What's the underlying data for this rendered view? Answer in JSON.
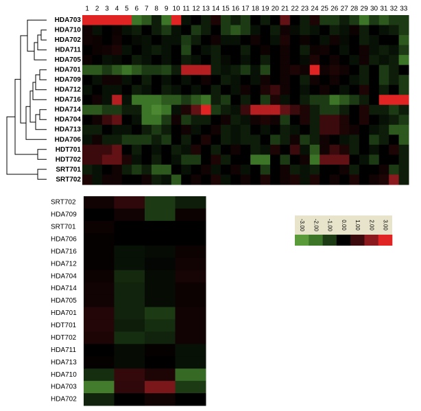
{
  "chart_data": [
    {
      "type": "heatmap",
      "columns": [
        "1",
        "2",
        "3",
        "4",
        "5",
        "6",
        "7",
        "8",
        "9",
        "10",
        "11",
        "12",
        "13",
        "14",
        "15",
        "16",
        "17",
        "18",
        "19",
        "20",
        "21",
        "22",
        "23",
        "24",
        "25",
        "26",
        "27",
        "28",
        "29",
        "30",
        "31",
        "32",
        "33"
      ],
      "rows": [
        "HDA703",
        "HDA710",
        "HDA702",
        "HDA711",
        "HDA705",
        "HDA701",
        "HDA709",
        "HDA712",
        "HDA716",
        "HDA714",
        "HDA704",
        "HDA713",
        "HDA706",
        "HDT701",
        "HDT702",
        "SRT701",
        "SRT702"
      ],
      "values": [
        [
          3,
          3,
          3,
          3,
          3,
          -2,
          -1.5,
          -0.5,
          -2,
          3,
          -0.3,
          0,
          -0.5,
          0.5,
          -1,
          -0.5,
          -1,
          0,
          -0.5,
          0,
          1.5,
          0,
          -0.5,
          0.5,
          -1,
          -1,
          -0.5,
          -1,
          -2,
          -1,
          -1.5,
          -1,
          -1
        ],
        [
          0.3,
          -0.3,
          0,
          0.2,
          -0.3,
          -0.5,
          0,
          -0.5,
          -1,
          -0.3,
          0,
          -1,
          -0.5,
          0,
          -1,
          -1.5,
          -1,
          -0.3,
          0,
          -0.5,
          0.3,
          -0.2,
          -0.5,
          -0.3,
          0,
          -0.5,
          -0.3,
          0.2,
          -0.5,
          0,
          -0.3,
          -0.5,
          -1
        ],
        [
          0.3,
          0.2,
          0,
          0.3,
          0,
          -0.2,
          -0.3,
          0,
          -0.3,
          -0.3,
          -1,
          -0.5,
          0,
          0.3,
          -0.3,
          -0.3,
          0,
          0.3,
          0,
          -0.3,
          0.5,
          0,
          0.2,
          0,
          -0.3,
          0.3,
          -0.2,
          0,
          -0.5,
          -0.3,
          0,
          0,
          -1.5
        ],
        [
          0,
          0.2,
          0.3,
          0.5,
          -0.3,
          0,
          -0.3,
          -0.5,
          -0.3,
          0,
          -1.2,
          0,
          -0.3,
          -0.5,
          0,
          0,
          -0.5,
          0,
          0.2,
          0,
          0.3,
          0,
          -0.5,
          0.2,
          0.3,
          0,
          -0.3,
          0,
          0.3,
          -0.3,
          -0.5,
          -0.3,
          -1
        ],
        [
          0.2,
          0,
          -0.3,
          -0.2,
          0,
          -0.5,
          -0.3,
          0,
          -0.3,
          0,
          -0.5,
          -0.3,
          0,
          -0.5,
          -0.2,
          0,
          -0.3,
          0,
          -0.5,
          0,
          0.3,
          0,
          -0.2,
          0.5,
          0,
          0.3,
          0,
          -0.3,
          0.3,
          -0.5,
          -0.3,
          -0.5,
          -2
        ],
        [
          -1.5,
          -1.5,
          -1,
          -1.5,
          -2,
          -1.5,
          -1,
          -1,
          -1.2,
          -0.5,
          2.5,
          2.5,
          2.5,
          -0.5,
          -0.3,
          -0.5,
          -1,
          -0.3,
          -1.2,
          0,
          0.3,
          0.5,
          0.3,
          3,
          0.3,
          0.5,
          0.3,
          0,
          -0.5,
          0,
          -1,
          -0.5,
          0
        ],
        [
          0,
          -0.3,
          0.3,
          0.3,
          -0.3,
          0,
          -0.5,
          0,
          -0.3,
          0,
          -0.3,
          0,
          0.3,
          0,
          -0.5,
          -0.3,
          0,
          -0.3,
          0.3,
          0,
          0.3,
          0,
          -0.5,
          0.3,
          0,
          0.3,
          0,
          -0.3,
          -0.5,
          0,
          -1,
          -0.5,
          -1
        ],
        [
          -0.3,
          0,
          -0.3,
          -0.3,
          0,
          -0.5,
          -0.3,
          0,
          -0.5,
          -0.3,
          0,
          -0.3,
          0,
          -0.5,
          0,
          -0.3,
          0.3,
          0,
          0.5,
          1,
          0.3,
          0,
          -0.3,
          0,
          0.3,
          0,
          -0.3,
          0,
          0.5,
          0,
          -0.5,
          0,
          -1
        ],
        [
          0,
          0.3,
          -0.3,
          2.5,
          -0.3,
          -2,
          -2,
          -2,
          -1.5,
          -1.5,
          -1,
          -1.5,
          -2,
          -0.5,
          -1,
          0,
          -0.5,
          0,
          -1,
          0.5,
          -0.3,
          0,
          -0.5,
          -1,
          -1,
          -2,
          -1.5,
          -1,
          -0.5,
          0,
          3,
          3,
          3
        ],
        [
          -1.5,
          -1.5,
          -1,
          -1,
          -0.5,
          -0.5,
          -2,
          -2.5,
          -2,
          -0.3,
          0.5,
          1.5,
          3,
          -1,
          -0.5,
          -0.3,
          1,
          2.5,
          2.5,
          2.5,
          1.5,
          1,
          0.5,
          -0.5,
          -1,
          -1,
          -0.5,
          0,
          0.5,
          -0.5,
          -0.5,
          -1,
          -0.5
        ],
        [
          0,
          0.3,
          1,
          1.5,
          0,
          -0.3,
          -2,
          -2,
          -1,
          0.3,
          -1,
          -0.5,
          -0.5,
          0,
          0.3,
          -0.5,
          -0.3,
          0.3,
          0.5,
          0.3,
          -1,
          0,
          0.5,
          -0.5,
          1,
          1,
          0.5,
          0,
          0.5,
          0,
          -0.3,
          -0.5,
          -1
        ],
        [
          -0.5,
          -0.5,
          0,
          -0.3,
          -0.3,
          0,
          -0.5,
          -1,
          -0.5,
          0,
          0.3,
          -0.3,
          0,
          0.3,
          -0.5,
          -0.3,
          -0.5,
          0,
          -0.3,
          0,
          -0.5,
          -0.3,
          0,
          -0.5,
          1,
          1,
          0.5,
          0.3,
          0,
          -0.3,
          -0.5,
          -1.5,
          -1.5
        ],
        [
          -0.3,
          0.3,
          -0.5,
          -0.5,
          -1,
          -1,
          -1,
          -0.5,
          -1,
          0,
          -0.5,
          0,
          0.5,
          0,
          -0.5,
          -0.3,
          -0.5,
          -0.5,
          0,
          -1,
          -0.5,
          0.3,
          -1,
          -0.5,
          0.3,
          0,
          -0.3,
          -0.5,
          0,
          -1,
          -0.5,
          0,
          -1.5
        ],
        [
          1,
          1,
          1,
          1.5,
          0,
          -0.5,
          0,
          -0.3,
          0,
          -0.5,
          -0.3,
          0.5,
          0,
          -0.5,
          0,
          0.3,
          0,
          -0.5,
          -0.3,
          0.5,
          0,
          1,
          -0.3,
          -1.5,
          0.3,
          1,
          0.5,
          -0.5,
          0,
          -0.3,
          0,
          0.5,
          -0.5
        ],
        [
          1,
          1,
          1.5,
          1.5,
          0.5,
          -0.3,
          0,
          -0.5,
          0,
          -0.3,
          -1,
          -1,
          0,
          0.5,
          -0.5,
          0,
          0,
          -2,
          -2,
          0,
          -1,
          0,
          0.3,
          -2,
          1.5,
          1.5,
          1.5,
          0,
          -0.3,
          -1,
          0,
          0,
          -0.5
        ],
        [
          -0.5,
          -0.3,
          0,
          0.3,
          -0.5,
          -1,
          -0.5,
          -1.5,
          -1.5,
          0,
          -0.3,
          0,
          0.3,
          -0.3,
          0,
          0.3,
          -0.3,
          0,
          -1,
          0,
          0.3,
          -0.5,
          -0.3,
          -0.5,
          0,
          0,
          0.3,
          -0.5,
          0,
          0,
          0.3,
          -1,
          -0.5
        ],
        [
          0.5,
          -0.3,
          0.3,
          0.3,
          0,
          0,
          0.3,
          -0.5,
          -0.3,
          -1.5,
          0,
          0.3,
          0,
          0.5,
          -0.3,
          0,
          0.3,
          0,
          0.5,
          0,
          0.3,
          0.5,
          -0.3,
          0.5,
          0,
          0.3,
          0,
          0.5,
          0,
          0.3,
          0.5,
          2,
          -0.5
        ]
      ],
      "colorbar": {
        "ticks": [
          {
            "value": -3,
            "label": "-3.00"
          },
          {
            "value": -2,
            "label": "-2.00"
          },
          {
            "value": -1,
            "label": "-1.00"
          },
          {
            "value": 0,
            "label": "0.00"
          },
          {
            "value": 1,
            "label": "1.00"
          },
          {
            "value": 2,
            "label": "2.00"
          },
          {
            "value": 3,
            "label": "3.00"
          }
        ],
        "colors": [
          "#5a9a3a",
          "#3d7528",
          "#1c3a14",
          "#000000",
          "#3a0a0c",
          "#8a1a1e",
          "#e02424"
        ]
      }
    },
    {
      "type": "heatmap",
      "rows": [
        "SRT702",
        "HDA709",
        "SRT701",
        "HDA706",
        "HDA716",
        "HDA712",
        "HDA704",
        "HDA714",
        "HDA705",
        "HDA701",
        "HDT701",
        "HDT702",
        "HDA711",
        "HDA713",
        "HDA710",
        "HDA703",
        "HDA702"
      ],
      "values": [
        [
          0.3,
          0.8,
          -1,
          -0.5
        ],
        [
          0,
          0.3,
          -1,
          0.2
        ],
        [
          0.2,
          0,
          0,
          0
        ],
        [
          0.1,
          0,
          0,
          0
        ],
        [
          0.1,
          -0.3,
          -0.2,
          0.2
        ],
        [
          0.1,
          -0.3,
          -0.1,
          0.3
        ],
        [
          0.2,
          -0.7,
          -0.2,
          0.4
        ],
        [
          0.3,
          -0.6,
          -0.2,
          0.2
        ],
        [
          0.3,
          -0.6,
          -0.2,
          0.2
        ],
        [
          0.6,
          -0.6,
          -1,
          0.3
        ],
        [
          0.6,
          -0.5,
          -0.8,
          0.3
        ],
        [
          0.5,
          -0.8,
          -0.6,
          0.3
        ],
        [
          0,
          -0.2,
          0.1,
          -0.3
        ],
        [
          0.1,
          -0.2,
          0,
          -0.3
        ],
        [
          -0.8,
          0.9,
          0.5,
          -1.8
        ],
        [
          -2.2,
          0.8,
          1.8,
          -1
        ],
        [
          -0.6,
          0,
          0.3,
          0
        ]
      ]
    }
  ]
}
